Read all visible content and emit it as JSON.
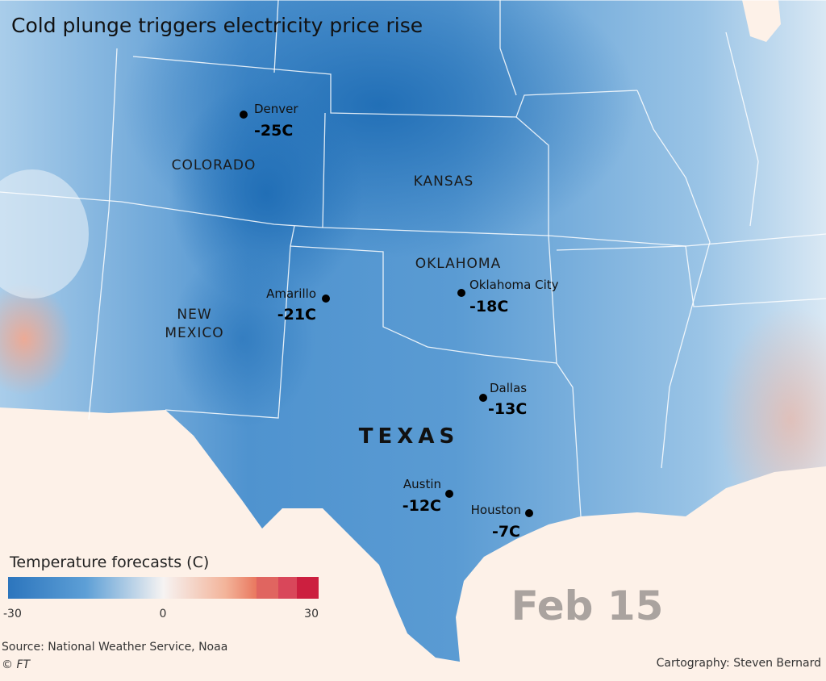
{
  "title": "Cold plunge triggers electricity price rise",
  "states": [
    {
      "lines": [
        "COLORADO"
      ]
    },
    {
      "lines": [
        "KANSAS"
      ]
    },
    {
      "lines": [
        "OKLAHOMA"
      ]
    },
    {
      "lines": [
        "NEW",
        "MEXICO"
      ]
    },
    {
      "lines": [
        "TEXAS"
      ]
    }
  ],
  "cities": [
    {
      "name": "Denver",
      "temp": "-25C"
    },
    {
      "name": "Amarillo",
      "temp": "-21C"
    },
    {
      "name": "Oklahoma City",
      "temp": "-18C"
    },
    {
      "name": "Dallas",
      "temp": "-13C"
    },
    {
      "name": "Austin",
      "temp": "-12C"
    },
    {
      "name": "Houston",
      "temp": "-7C"
    }
  ],
  "legend": {
    "title": "Temperature forecasts (C)",
    "ticks": [
      "-30",
      "0",
      "30"
    ]
  },
  "date": "Feb 15",
  "source": "Source: National Weather Service, Noaa",
  "credit": "© FT",
  "cartography": "Cartography: Steven Bernard"
}
